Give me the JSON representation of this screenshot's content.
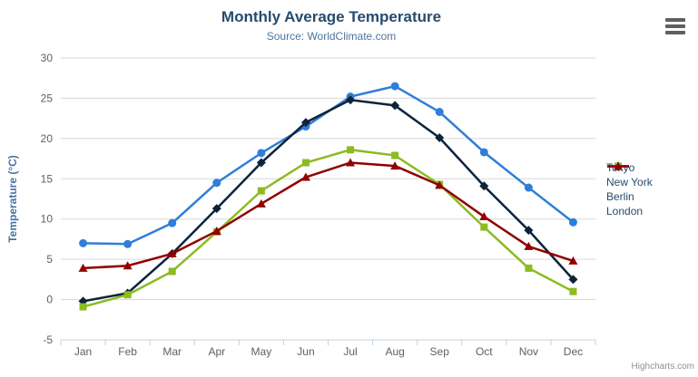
{
  "chart": {
    "title": "Monthly Average Temperature",
    "subtitle": "Source: WorldClimate.com",
    "credit": "Highcharts.com",
    "context_menu_icon": "hamburger-icon"
  },
  "chart_data": {
    "type": "line",
    "title": "Monthly Average Temperature",
    "subtitle": "Source: WorldClimate.com",
    "categories": [
      "Jan",
      "Feb",
      "Mar",
      "Apr",
      "May",
      "Jun",
      "Jul",
      "Aug",
      "Sep",
      "Oct",
      "Nov",
      "Dec"
    ],
    "series": [
      {
        "name": "Tokyo",
        "marker": "circle",
        "color": "#2f7ed8",
        "values": [
          7.0,
          6.9,
          9.5,
          14.5,
          18.2,
          21.5,
          25.2,
          26.5,
          23.3,
          18.3,
          13.9,
          9.6
        ]
      },
      {
        "name": "New York",
        "marker": "diamond",
        "color": "#0d233a",
        "values": [
          -0.2,
          0.8,
          5.7,
          11.3,
          17.0,
          22.0,
          24.8,
          24.1,
          20.1,
          14.1,
          8.6,
          2.5
        ]
      },
      {
        "name": "Berlin",
        "marker": "square",
        "color": "#8bbc21",
        "values": [
          -0.9,
          0.6,
          3.5,
          8.4,
          13.5,
          17.0,
          18.6,
          17.9,
          14.3,
          9.0,
          3.9,
          1.0
        ]
      },
      {
        "name": "London",
        "marker": "triangle",
        "color": "#910000",
        "values": [
          3.9,
          4.2,
          5.7,
          8.5,
          11.9,
          15.2,
          17.0,
          16.6,
          14.2,
          10.3,
          6.6,
          4.8
        ]
      }
    ],
    "xlabel": "",
    "ylabel": "Temperature (°C)",
    "ylim": [
      -5,
      30
    ],
    "ytick_step": 5,
    "yticks": [
      "-5",
      "0",
      "5",
      "10",
      "15",
      "20",
      "25",
      "30"
    ],
    "grid": true,
    "legend_position": "right",
    "colors": {
      "title_text": "#274b6d",
      "subtitle_text": "#4d759e",
      "axis_label_text": "#606060",
      "y_axis_title_text": "#4572a7",
      "gridline": "#d8d8d8",
      "axis_line": "#c0d0e0",
      "legend_text": "#274b6d",
      "credit_text": "#909090"
    }
  }
}
